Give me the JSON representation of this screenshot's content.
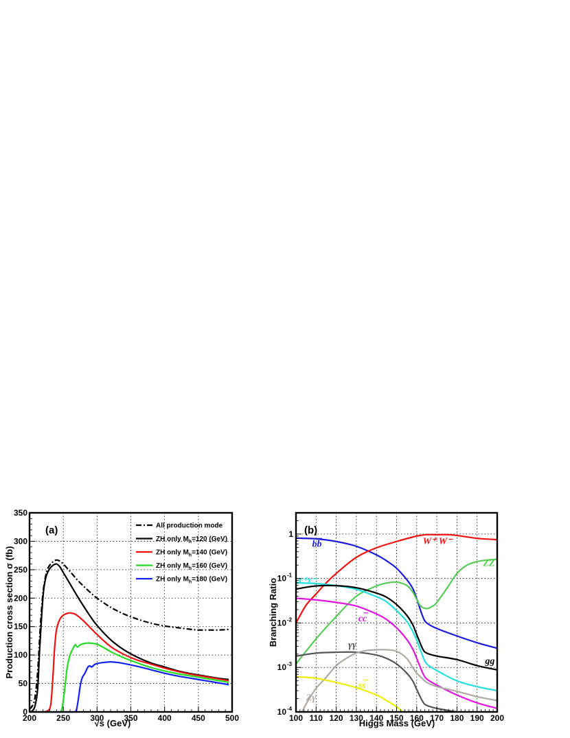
{
  "chart_data": [
    {
      "type": "line",
      "panel_label": "(a)",
      "xlabel": "√s (GeV)",
      "ylabel": "Production cross section σ (fb)",
      "xlim": [
        200,
        500
      ],
      "ylim": [
        0,
        350
      ],
      "xticks": [
        200,
        250,
        300,
        350,
        400,
        450,
        500
      ],
      "yticks": [
        0,
        50,
        100,
        150,
        200,
        250,
        300,
        350
      ],
      "grid": true,
      "legend_position": "top-right",
      "series": [
        {
          "name": "All production mode",
          "color": "#000000",
          "dash": "dashdot",
          "x": [
            200,
            204,
            208,
            212,
            216,
            220,
            225,
            230,
            235,
            240,
            245,
            250,
            260,
            270,
            280,
            290,
            300,
            320,
            340,
            360,
            380,
            400,
            420,
            440,
            450,
            460,
            480,
            495
          ],
          "y": [
            5,
            10,
            25,
            70,
            150,
            210,
            245,
            258,
            264,
            267,
            265,
            260,
            247,
            233,
            221,
            210,
            200,
            184,
            172,
            163,
            156,
            151,
            148,
            145,
            144,
            144,
            144,
            145
          ]
        },
        {
          "name": "ZH only M_h=120 (GeV)",
          "color": "#000000",
          "dash": "solid",
          "x": [
            200,
            204,
            208,
            212,
            215,
            218,
            221,
            225,
            230,
            235,
            240,
            245,
            250,
            260,
            270,
            280,
            290,
            300,
            320,
            340,
            360,
            380,
            400,
            420,
            440,
            460,
            480,
            495
          ],
          "y": [
            0,
            2,
            10,
            40,
            110,
            170,
            215,
            240,
            252,
            258,
            260,
            255,
            245,
            225,
            205,
            186,
            168,
            152,
            127,
            109,
            96,
            86,
            79,
            72,
            67,
            63,
            59,
            57
          ]
        },
        {
          "name": "ZH only M_h=140 (GeV)",
          "color": "#ee1111",
          "dash": "solid",
          "x": [
            200,
            215,
            225,
            231,
            234,
            237,
            240,
            245,
            250,
            255,
            260,
            265,
            270,
            280,
            290,
            300,
            320,
            340,
            360,
            380,
            400,
            420,
            440,
            460,
            480,
            495
          ],
          "y": [
            0,
            0,
            1,
            10,
            50,
            110,
            145,
            163,
            170,
            173,
            174,
            173,
            170,
            160,
            148,
            136,
            115,
            101,
            91,
            84,
            77,
            71,
            66,
            62,
            58,
            55
          ]
        },
        {
          "name": "ZH only M_h=160 (GeV)",
          "color": "#22dd22",
          "dash": "solid",
          "x": [
            200,
            240,
            247,
            250,
            253,
            256,
            260,
            265,
            268,
            271,
            275,
            280,
            285,
            290,
            300,
            310,
            320,
            340,
            360,
            380,
            400,
            420,
            440,
            460,
            480,
            495
          ],
          "y": [
            0,
            0,
            2,
            20,
            50,
            80,
            100,
            113,
            118,
            114,
            118,
            120,
            121,
            121,
            119,
            113,
            106,
            95,
            86,
            78,
            72,
            67,
            63,
            59,
            55,
            52
          ]
        },
        {
          "name": "ZH only M_h=180 (GeV)",
          "color": "#1122ee",
          "dash": "solid",
          "x": [
            200,
            265,
            269,
            272,
            275,
            278,
            282,
            286,
            289,
            292,
            296,
            300,
            310,
            320,
            330,
            340,
            360,
            380,
            400,
            420,
            440,
            460,
            480,
            495
          ],
          "y": [
            0,
            0,
            2,
            20,
            45,
            60,
            68,
            78,
            81,
            79,
            83,
            85,
            87,
            88,
            87,
            85,
            80,
            74,
            68,
            63,
            59,
            55,
            51,
            48
          ]
        }
      ]
    },
    {
      "type": "line",
      "panel_label": "(b)",
      "xlabel": "Higgs Mass (GeV)",
      "ylabel": "Branching Ratio",
      "xlim": [
        100,
        200
      ],
      "ylim": [
        0.0001,
        3
      ],
      "yscale": "log",
      "xticks": [
        100,
        110,
        120,
        130,
        140,
        150,
        160,
        170,
        180,
        190,
        200
      ],
      "ytick_labels": [
        {
          "base": "10",
          "exp": "-4",
          "value": 0.0001
        },
        {
          "base": "10",
          "exp": "-3",
          "value": 0.001
        },
        {
          "base": "10",
          "exp": "-2",
          "value": 0.01
        },
        {
          "base": "10",
          "exp": "-1",
          "value": 0.1
        },
        {
          "base": "1",
          "exp": "",
          "value": 1
        }
      ],
      "grid": true,
      "series": [
        {
          "name": "bb",
          "color": "#1a1add",
          "x": [
            100,
            110,
            120,
            130,
            140,
            145,
            150,
            155,
            158,
            160,
            163,
            165,
            170,
            180,
            190,
            200
          ],
          "y": [
            0.81,
            0.78,
            0.68,
            0.53,
            0.34,
            0.25,
            0.17,
            0.095,
            0.06,
            0.035,
            0.014,
            0.01,
            0.0075,
            0.0051,
            0.0036,
            0.0027
          ]
        },
        {
          "name": "W+W-",
          "color": "#ee1111",
          "x": [
            100,
            105,
            110,
            115,
            120,
            130,
            140,
            150,
            160,
            165,
            170,
            175,
            180,
            190,
            200
          ],
          "y": [
            0.01,
            0.025,
            0.045,
            0.08,
            0.13,
            0.3,
            0.49,
            0.68,
            0.9,
            0.97,
            0.965,
            0.97,
            0.93,
            0.8,
            0.75
          ]
        },
        {
          "name": "ZZ",
          "color": "#55cc55",
          "x": [
            100,
            110,
            120,
            130,
            140,
            145,
            150,
            155,
            158,
            160,
            162,
            165,
            168,
            170,
            175,
            180,
            185,
            190,
            195,
            200
          ],
          "y": [
            0.0012,
            0.0044,
            0.014,
            0.04,
            0.068,
            0.079,
            0.083,
            0.07,
            0.05,
            0.034,
            0.024,
            0.021,
            0.024,
            0.029,
            0.06,
            0.13,
            0.2,
            0.24,
            0.26,
            0.27
          ]
        },
        {
          "name": "τ+τ-",
          "color": "#22e0e0",
          "x": [
            100,
            110,
            120,
            130,
            140,
            145,
            150,
            155,
            158,
            160,
            163,
            165,
            170,
            180,
            190,
            200
          ],
          "y": [
            0.08,
            0.077,
            0.069,
            0.057,
            0.039,
            0.03,
            0.019,
            0.011,
            0.0065,
            0.0041,
            0.0018,
            0.0012,
            0.00085,
            0.0005,
            0.00037,
            0.0003
          ]
        },
        {
          "name": "gg",
          "color": "#000000",
          "x": [
            100,
            110,
            120,
            130,
            140,
            145,
            150,
            155,
            158,
            160,
            163,
            165,
            170,
            180,
            190,
            200
          ],
          "y": [
            0.058,
            0.068,
            0.069,
            0.062,
            0.047,
            0.038,
            0.026,
            0.015,
            0.0092,
            0.0055,
            0.0026,
            0.0021,
            0.0018,
            0.0015,
            0.0011,
            0.00088
          ]
        },
        {
          "name": "cc",
          "color": "#e015e0",
          "x": [
            100,
            110,
            120,
            130,
            140,
            145,
            150,
            155,
            158,
            160,
            163,
            165,
            170,
            180,
            190,
            200
          ],
          "y": [
            0.036,
            0.033,
            0.029,
            0.024,
            0.016,
            0.012,
            0.0078,
            0.0043,
            0.0026,
            0.0016,
            0.00075,
            0.00055,
            0.0004,
            0.00024,
            0.00016,
            0.00012
          ]
        },
        {
          "name": "γγ",
          "color": "#555555",
          "x": [
            100,
            110,
            120,
            130,
            140,
            145,
            150,
            155,
            158,
            160,
            163,
            165,
            170,
            180
          ],
          "y": [
            0.0018,
            0.0021,
            0.0022,
            0.0022,
            0.0019,
            0.0016,
            0.0012,
            0.00075,
            0.0005,
            0.00032,
            0.00017,
            0.00014,
            0.00012,
            0.0001
          ]
        },
        {
          "name": "Zγ",
          "color": "#b0a9a2",
          "x": [
            103,
            106,
            110,
            115,
            120,
            125,
            130,
            135,
            140,
            145,
            150,
            155,
            158,
            160,
            163,
            165,
            170,
            180,
            190,
            200
          ],
          "y": [
            0.0001,
            0.00018,
            0.00034,
            0.0006,
            0.0011,
            0.0016,
            0.0021,
            0.0024,
            0.0025,
            0.0025,
            0.0023,
            0.0016,
            0.001,
            0.00075,
            0.00055,
            0.00046,
            0.00037,
            0.00029,
            0.00022,
            0.00018
          ]
        },
        {
          "name": "ss",
          "color": "#eeee00",
          "x": [
            100,
            110,
            120,
            130,
            140,
            145,
            150,
            153
          ],
          "y": [
            0.00062,
            0.00057,
            0.00046,
            0.00035,
            0.00024,
            0.00018,
            0.00013,
            0.0001
          ]
        }
      ],
      "labels": [
        {
          "text": "bb",
          "overbar": true,
          "color": "#1a1add",
          "x": 108,
          "y": 0.52
        },
        {
          "text": "W⁺ W⁻",
          "overbar": false,
          "color": "#ee1111",
          "x": 163,
          "y": 0.6
        },
        {
          "text": "ZZ",
          "overbar": false,
          "color": "#55cc55",
          "x": 193,
          "y": 0.19
        },
        {
          "text": "τ⁺τ⁻",
          "overbar": false,
          "color": "#22e0e0",
          "x": 101,
          "y": 0.077
        },
        {
          "text": "cc",
          "overbar": true,
          "color": "#e015e0",
          "x": 131,
          "y": 0.011
        },
        {
          "text": "gg",
          "overbar": false,
          "color": "#000000",
          "x": 194,
          "y": 0.0012
        },
        {
          "text": "γγ",
          "overbar": false,
          "color": "#555555",
          "x": 126,
          "y": 0.0028
        },
        {
          "text": "Zγ",
          "overbar": false,
          "color": "#b0a9a2",
          "x": 105,
          "y": 0.00018
        },
        {
          "text": "ss",
          "overbar": true,
          "color": "#eeee00",
          "x": 131,
          "y": 0.00034
        }
      ]
    }
  ]
}
